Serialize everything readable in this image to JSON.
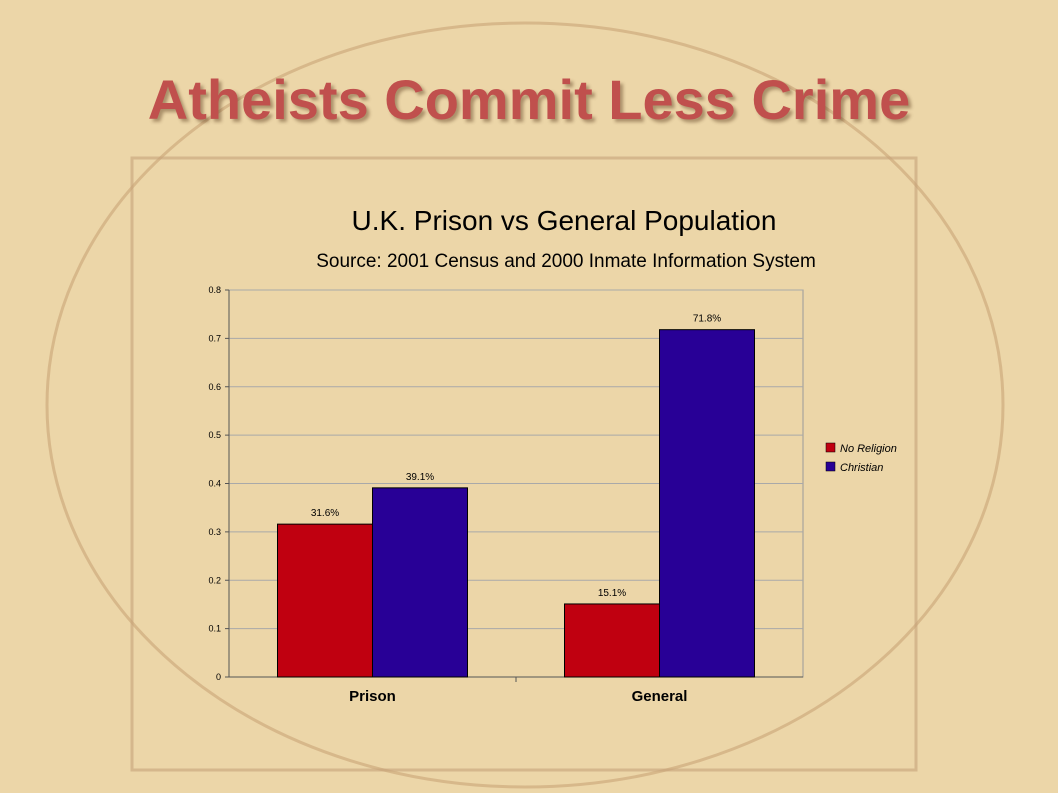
{
  "slide": {
    "title": "Atheists Commit Less Crime"
  },
  "colors": {
    "background": "#ecd6a8",
    "title": "#c0504d",
    "no_religion": "#c00010",
    "christian": "#280096",
    "gridline": "#a9a9a9"
  },
  "chart_data": {
    "type": "bar",
    "title": "U.K. Prison vs General Population",
    "subtitle": "Source: 2001 Census and 2000 Inmate Information System",
    "categories": [
      "Prison",
      "General"
    ],
    "series": [
      {
        "name": "No Religion",
        "values": [
          0.316,
          0.151
        ],
        "labels": [
          "31.6%",
          "15.1%"
        ],
        "color": "#c00010"
      },
      {
        "name": "Christian",
        "values": [
          0.391,
          0.718
        ],
        "labels": [
          "39.1%",
          "71.8%"
        ],
        "color": "#280096"
      }
    ],
    "ylim": [
      0,
      0.8
    ],
    "yticks": [
      "0",
      "0.1",
      "0.2",
      "0.3",
      "0.4",
      "0.5",
      "0.6",
      "0.7",
      "0.8"
    ],
    "grid": true,
    "legend_position": "right"
  }
}
